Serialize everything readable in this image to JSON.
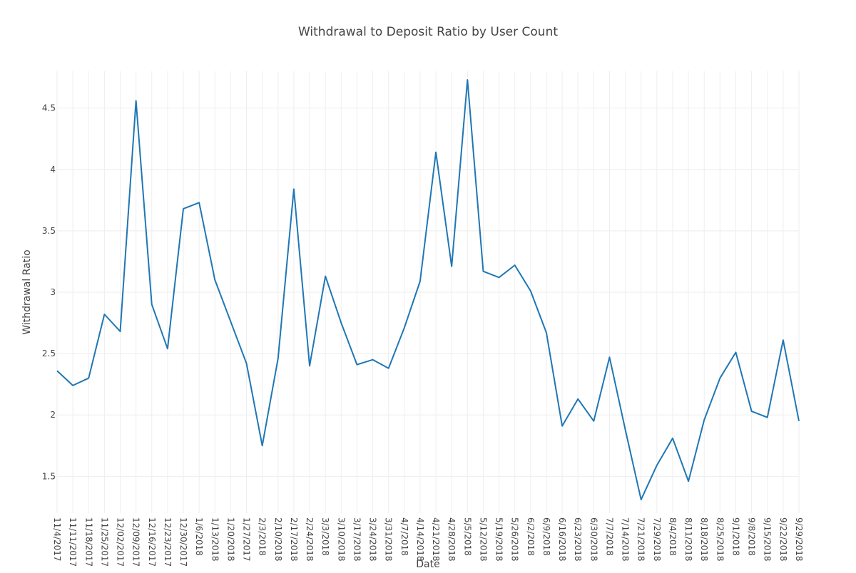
{
  "chart_data": {
    "type": "line",
    "title": "Withdrawal to Deposit Ratio by User Count",
    "xlabel": "Date",
    "ylabel": "Withdrawal Ratio",
    "ylim": [
      1.2,
      4.8
    ],
    "yticks": [
      1.5,
      2,
      2.5,
      3,
      3.5,
      4,
      4.5
    ],
    "grid": true,
    "colors": {
      "line": "#1f77b4"
    },
    "categories": [
      "11/4/2017",
      "11/11/2017",
      "11/18/2017",
      "11/25/2017",
      "12/02/2017",
      "12/09/2017",
      "12/16/2017",
      "12/23/2017",
      "12/30/2017",
      "1/6/2018",
      "1/13/2018",
      "1/20/2018",
      "1/27/2017",
      "2/3/2018",
      "2/10/2018",
      "2/17/2018",
      "2/24/2018",
      "3/3/2018",
      "3/10/2018",
      "3/17/2018",
      "3/24/2018",
      "3/31/2018",
      "4/7/2018",
      "4/14/2018",
      "4/21/2018",
      "4/28/2018",
      "5/5/2018",
      "5/12/2018",
      "5/19/2018",
      "5/26/2018",
      "6/2/2018",
      "6/9/2018",
      "6/16/2018",
      "6/23/2018",
      "6/30/2018",
      "7/7/2018",
      "7/14/2018",
      "7/21/2018",
      "7/29/2018",
      "8/4/2018",
      "8/11/2018",
      "8/18/2018",
      "8/25/2018",
      "9/1/2018",
      "9/8/2018",
      "9/15/2018",
      "9/22/2018",
      "9/29/2018"
    ],
    "series": [
      {
        "values": [
          2.36,
          2.24,
          2.3,
          2.82,
          2.68,
          4.56,
          2.9,
          2.54,
          3.68,
          3.73,
          3.1,
          2.76,
          2.42,
          1.75,
          2.46,
          3.84,
          2.4,
          3.13,
          2.75,
          2.41,
          2.45,
          2.38,
          2.71,
          3.09,
          4.14,
          3.21,
          4.73,
          3.17,
          3.12,
          3.22,
          3.01,
          2.67,
          1.91,
          2.13,
          1.95,
          2.47,
          1.88,
          1.31,
          1.59,
          1.81,
          1.46,
          1.96,
          2.3,
          2.51,
          2.03,
          1.98,
          2.61,
          1.95
        ]
      }
    ]
  }
}
